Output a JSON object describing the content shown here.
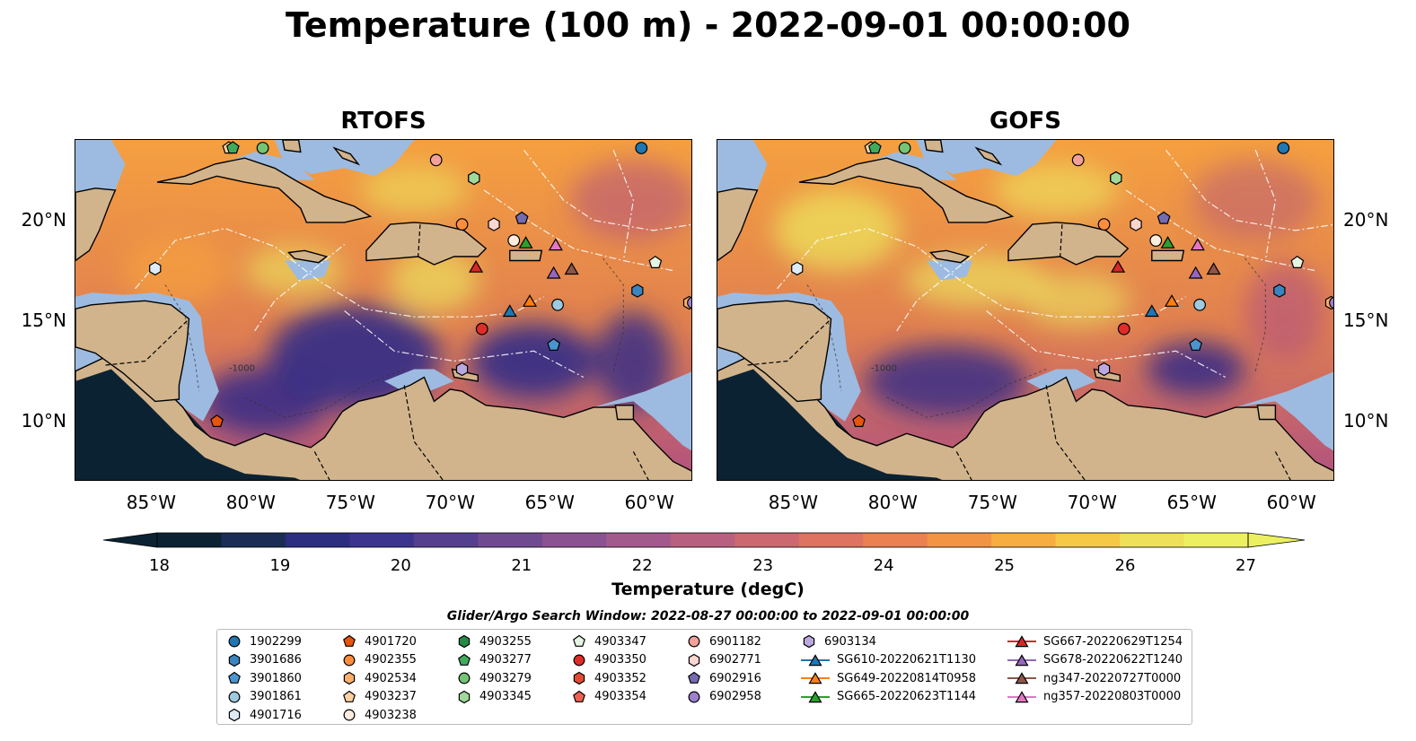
{
  "title": "Temperature (100 m) - 2022-09-01 00:00:00",
  "panels": [
    {
      "title": "RTOFS"
    },
    {
      "title": "GOFS"
    }
  ],
  "map": {
    "lon_range": [
      -89,
      -58
    ],
    "lat_range": [
      7,
      24
    ],
    "lon_ticks": [
      "85°W",
      "80°W",
      "75°W",
      "70°W",
      "65°W",
      "60°W"
    ],
    "lon_tick_values": [
      -85,
      -80,
      -75,
      -70,
      -65,
      -60
    ],
    "lat_ticks": [
      "20°N",
      "15°N",
      "10°N"
    ],
    "lat_tick_values": [
      20,
      15,
      10
    ],
    "contour_label": "-1000",
    "colors": {
      "land": "#d2b48c",
      "shelf": "#9dbbe0",
      "deep": "#0b2233",
      "warm": "#f5a040",
      "hot": "#ecf060",
      "mid": "#b05080",
      "cool": "#3a2f85"
    }
  },
  "colorbar": {
    "title": "Temperature (degC)",
    "ticks": [
      "18",
      "19",
      "20",
      "21",
      "22",
      "23",
      "24",
      "25",
      "26",
      "27"
    ],
    "range": [
      18,
      27
    ]
  },
  "legend": {
    "title": "Glider/Argo Search Window: 2022-08-27 00:00:00 to 2022-09-01 00:00:00",
    "items": [
      {
        "label": "1902299",
        "marker": "circle",
        "color": "#1f77b4"
      },
      {
        "label": "3901686",
        "marker": "hexagon",
        "color": "#3a84c0"
      },
      {
        "label": "3901860",
        "marker": "pentagon",
        "color": "#4a94d0"
      },
      {
        "label": "3901861",
        "marker": "circle",
        "color": "#9ecae1"
      },
      {
        "label": "4901716",
        "marker": "hexagon",
        "color": "#deebf7"
      },
      {
        "label": "4901720",
        "marker": "pentagon",
        "color": "#e6550d"
      },
      {
        "label": "4902355",
        "marker": "circle",
        "color": "#fd8d3c"
      },
      {
        "label": "4902534",
        "marker": "hexagon",
        "color": "#fdae6b"
      },
      {
        "label": "4903237",
        "marker": "pentagon",
        "color": "#fdd0a2"
      },
      {
        "label": "4903238",
        "marker": "circle",
        "color": "#feedde"
      },
      {
        "label": "4903255",
        "marker": "hexagon",
        "color": "#238b45"
      },
      {
        "label": "4903277",
        "marker": "pentagon",
        "color": "#41ab5d"
      },
      {
        "label": "4903279",
        "marker": "circle",
        "color": "#74c476"
      },
      {
        "label": "4903345",
        "marker": "hexagon",
        "color": "#a1d99b"
      },
      {
        "label": "4903347",
        "marker": "pentagon",
        "color": "#e5f5e0"
      },
      {
        "label": "4903350",
        "marker": "circle",
        "color": "#de2d26"
      },
      {
        "label": "4903352",
        "marker": "hexagon",
        "color": "#e34a33"
      },
      {
        "label": "4903354",
        "marker": "pentagon",
        "color": "#f06050"
      },
      {
        "label": "6901182",
        "marker": "circle",
        "color": "#f4a09a"
      },
      {
        "label": "6902771",
        "marker": "hexagon",
        "color": "#fcd5d0"
      },
      {
        "label": "6902916",
        "marker": "pentagon",
        "color": "#756bb1"
      },
      {
        "label": "6902958",
        "marker": "circle",
        "color": "#9e80d0"
      },
      {
        "label": "6903134",
        "marker": "hexagon",
        "color": "#bca8e0"
      },
      {
        "label": "SG610-20220621T1130",
        "marker": "triangle",
        "color": "#1f77b4"
      },
      {
        "label": "SG649-20220814T0958",
        "marker": "triangle",
        "color": "#ff7f0e"
      },
      {
        "label": "SG665-20220623T1144",
        "marker": "triangle",
        "color": "#2ca02c"
      },
      {
        "label": "SG667-20220629T1254",
        "marker": "triangle",
        "color": "#d62728"
      },
      {
        "label": "SG678-20220622T1240",
        "marker": "triangle",
        "color": "#9467bd"
      },
      {
        "label": "ng347-20220727T0000",
        "marker": "triangle",
        "color": "#8c564b"
      },
      {
        "label": "ng357-20220803T0000",
        "marker": "triangle",
        "color": "#e377c2"
      }
    ]
  },
  "platforms": [
    {
      "id": "1902299",
      "lon": -60.6,
      "lat": 23.6
    },
    {
      "id": "3901686",
      "lon": -60.8,
      "lat": 16.5
    },
    {
      "id": "3901860",
      "lon": -65.0,
      "lat": 13.8
    },
    {
      "id": "3901861",
      "lon": -64.8,
      "lat": 15.8
    },
    {
      "id": "4901716",
      "lon": -85.0,
      "lat": 17.6
    },
    {
      "id": "4901720",
      "lon": -81.9,
      "lat": 10.0
    },
    {
      "id": "4902355",
      "lon": -69.6,
      "lat": 19.8
    },
    {
      "id": "4902534",
      "lon": -58.2,
      "lat": 15.9
    },
    {
      "id": "4903237",
      "lon": -81.3,
      "lat": 23.6
    },
    {
      "id": "4903238",
      "lon": -67.0,
      "lat": 19.0
    },
    {
      "id": "4903255",
      "lon": -69.0,
      "lat": 22.1
    },
    {
      "id": "4903277",
      "lon": -81.1,
      "lat": 23.6
    },
    {
      "id": "4903279",
      "lon": -79.6,
      "lat": 23.6
    },
    {
      "id": "4903345",
      "lon": -69.0,
      "lat": 22.1
    },
    {
      "id": "4903347",
      "lon": -59.9,
      "lat": 17.9
    },
    {
      "id": "4903350",
      "lon": -68.6,
      "lat": 14.6
    },
    {
      "id": "6901182",
      "lon": -70.9,
      "lat": 23.0
    },
    {
      "id": "6902771",
      "lon": -68.0,
      "lat": 19.8
    },
    {
      "id": "6902916",
      "lon": -66.6,
      "lat": 20.1
    },
    {
      "id": "6902958",
      "lon": -58.0,
      "lat": 15.9
    },
    {
      "id": "6903134",
      "lon": -69.6,
      "lat": 12.6
    },
    {
      "id": "SG610-20220621T1130",
      "lon": -67.2,
      "lat": 15.5
    },
    {
      "id": "SG649-20220814T0958",
      "lon": -66.2,
      "lat": 16.0
    },
    {
      "id": "SG665-20220623T1144",
      "lon": -66.4,
      "lat": 18.9
    },
    {
      "id": "SG667-20220629T1254",
      "lon": -68.9,
      "lat": 17.7
    },
    {
      "id": "SG678-20220622T1240",
      "lon": -65.0,
      "lat": 17.4
    },
    {
      "id": "ng347-20220727T0000",
      "lon": -64.1,
      "lat": 17.6
    },
    {
      "id": "ng357-20220803T0000",
      "lon": -64.9,
      "lat": 18.8
    }
  ]
}
